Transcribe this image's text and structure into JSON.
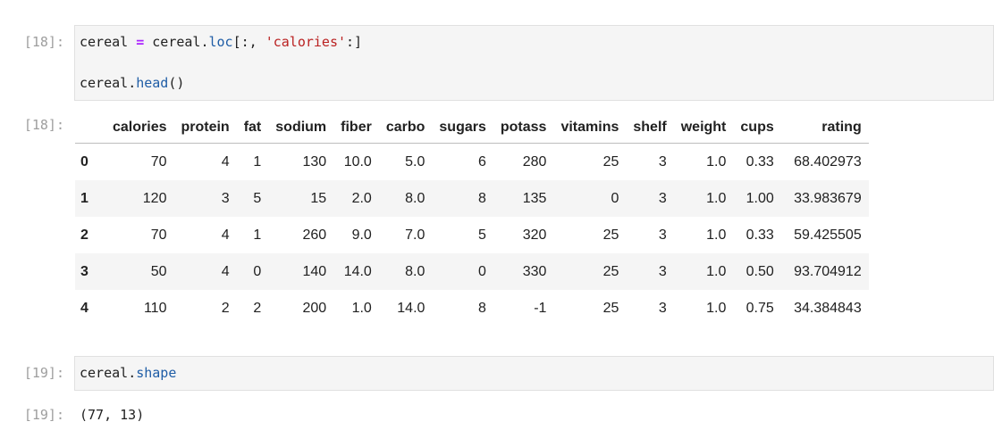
{
  "cell18": {
    "in_prompt": "[18]:",
    "line1_var": "cereal",
    "line1_eq": "=",
    "line1_obj": "cereal",
    "line1_attr": "loc",
    "line1_open": "[:, ",
    "line1_str": "'calories'",
    "line1_close": ":]",
    "line2_obj": "cereal",
    "line2_fn": "head",
    "line2_parens": "()",
    "out_prompt": "[18]:"
  },
  "dataframe": {
    "columns": [
      "",
      "calories",
      "protein",
      "fat",
      "sodium",
      "fiber",
      "carbo",
      "sugars",
      "potass",
      "vitamins",
      "shelf",
      "weight",
      "cups",
      "rating"
    ],
    "rows": [
      {
        "index": "0",
        "cells": [
          "70",
          "4",
          "1",
          "130",
          "10.0",
          "5.0",
          "6",
          "280",
          "25",
          "3",
          "1.0",
          "0.33",
          "68.402973"
        ]
      },
      {
        "index": "1",
        "cells": [
          "120",
          "3",
          "5",
          "15",
          "2.0",
          "8.0",
          "8",
          "135",
          "0",
          "3",
          "1.0",
          "1.00",
          "33.983679"
        ]
      },
      {
        "index": "2",
        "cells": [
          "70",
          "4",
          "1",
          "260",
          "9.0",
          "7.0",
          "5",
          "320",
          "25",
          "3",
          "1.0",
          "0.33",
          "59.425505"
        ]
      },
      {
        "index": "3",
        "cells": [
          "50",
          "4",
          "0",
          "140",
          "14.0",
          "8.0",
          "0",
          "330",
          "25",
          "3",
          "1.0",
          "0.50",
          "93.704912"
        ]
      },
      {
        "index": "4",
        "cells": [
          "110",
          "2",
          "2",
          "200",
          "1.0",
          "14.0",
          "8",
          "-1",
          "25",
          "3",
          "1.0",
          "0.75",
          "34.384843"
        ]
      }
    ]
  },
  "cell19": {
    "in_prompt": "[19]:",
    "code_obj": "cereal",
    "code_attr": "shape",
    "out_prompt": "[19]:",
    "output": "(77, 13)"
  }
}
